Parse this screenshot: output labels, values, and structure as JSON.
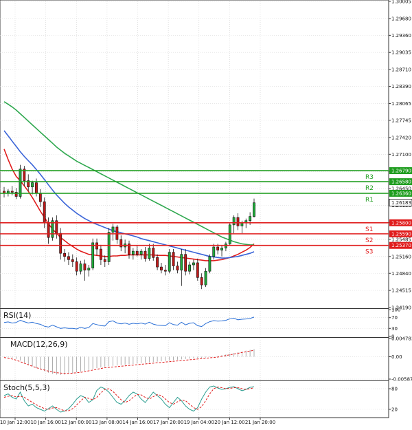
{
  "chart_data": {
    "type": "candlestick",
    "x_tick_labels": [
      "10 Jan 12:00",
      "10 Jan 16:00",
      "12 Jan 00:00",
      "13 Jan 08:00",
      "14 Jan 16:00",
      "17 Jan 20:00",
      "19 Jan 04:00",
      "20 Jan 12:00",
      "21 Jan 20:00"
    ],
    "price_axis": {
      "ticks": [
        "1.30005",
        "1.29680",
        "1.29360",
        "1.29035",
        "1.28710",
        "1.28390",
        "1.28065",
        "1.27745",
        "1.27420",
        "1.27100",
        "1.26775",
        "1.26450",
        "1.26130",
        "1.25805",
        "1.25485",
        "1.25160",
        "1.24840",
        "1.24515",
        "1.24190"
      ],
      "range": [
        1.2419,
        1.30005
      ]
    },
    "levels": [
      {
        "name": "R3",
        "value": "1.26790",
        "kind": "resistance",
        "color": "#1f9d1f"
      },
      {
        "name": "R2",
        "value": "1.26580",
        "kind": "resistance",
        "color": "#1f9d1f"
      },
      {
        "name": "R1",
        "value": "1.26360",
        "kind": "resistance",
        "color": "#1f9d1f"
      },
      {
        "name": "S1",
        "value": "1.25800",
        "kind": "support",
        "color": "#e01c1c"
      },
      {
        "name": "S2",
        "value": "1.25590",
        "kind": "support",
        "color": "#e01c1c"
      },
      {
        "name": "S3",
        "value": "1.25370",
        "kind": "support",
        "color": "#e01c1c"
      }
    ],
    "current_price": "1.26183",
    "candles": [
      [
        1.264,
        1.2648,
        1.2628,
        1.2636
      ],
      [
        1.2636,
        1.2644,
        1.263,
        1.264
      ],
      [
        1.264,
        1.265,
        1.2632,
        1.2638
      ],
      [
        1.2638,
        1.2646,
        1.2625,
        1.263
      ],
      [
        1.263,
        1.269,
        1.2626,
        1.2682
      ],
      [
        1.2682,
        1.2688,
        1.265,
        1.266
      ],
      [
        1.266,
        1.2672,
        1.264,
        1.2648
      ],
      [
        1.2648,
        1.266,
        1.2634,
        1.2656
      ],
      [
        1.2656,
        1.2664,
        1.263,
        1.2636
      ],
      [
        1.2636,
        1.2644,
        1.261,
        1.262
      ],
      [
        1.262,
        1.2628,
        1.257,
        1.258
      ],
      [
        1.258,
        1.259,
        1.254,
        1.2552
      ],
      [
        1.2552,
        1.259,
        1.2546,
        1.2584
      ],
      [
        1.2584,
        1.2594,
        1.255,
        1.256
      ],
      [
        1.256,
        1.257,
        1.251,
        1.2522
      ],
      [
        1.2522,
        1.253,
        1.2506,
        1.2516
      ],
      [
        1.2516,
        1.2524,
        1.25,
        1.251
      ],
      [
        1.251,
        1.252,
        1.2496,
        1.2506
      ],
      [
        1.2506,
        1.2514,
        1.248,
        1.2488
      ],
      [
        1.2488,
        1.2508,
        1.2482,
        1.2502
      ],
      [
        1.2502,
        1.251,
        1.247,
        1.249
      ],
      [
        1.249,
        1.25,
        1.2478,
        1.2494
      ],
      [
        1.2494,
        1.255,
        1.249,
        1.2542
      ],
      [
        1.2542,
        1.255,
        1.2518,
        1.253
      ],
      [
        1.253,
        1.2538,
        1.25,
        1.251
      ],
      [
        1.251,
        1.2518,
        1.2496,
        1.2506
      ],
      [
        1.2506,
        1.257,
        1.25,
        1.2562
      ],
      [
        1.2562,
        1.2578,
        1.2546,
        1.2572
      ],
      [
        1.2572,
        1.2576,
        1.254,
        1.2548
      ],
      [
        1.2548,
        1.2556,
        1.2526,
        1.2534
      ],
      [
        1.2534,
        1.2548,
        1.2522,
        1.254
      ],
      [
        1.254,
        1.2546,
        1.2512,
        1.252
      ],
      [
        1.252,
        1.2532,
        1.251,
        1.2526
      ],
      [
        1.2526,
        1.2536,
        1.2516,
        1.252
      ],
      [
        1.252,
        1.253,
        1.251,
        1.2526
      ],
      [
        1.2526,
        1.2534,
        1.2506,
        1.2512
      ],
      [
        1.2512,
        1.254,
        1.2508,
        1.2532
      ],
      [
        1.2532,
        1.254,
        1.2508,
        1.2514
      ],
      [
        1.2514,
        1.252,
        1.249,
        1.2496
      ],
      [
        1.2496,
        1.2504,
        1.2484,
        1.249
      ],
      [
        1.249,
        1.25,
        1.248,
        1.2488
      ],
      [
        1.2488,
        1.253,
        1.2484,
        1.2524
      ],
      [
        1.2524,
        1.253,
        1.249,
        1.2498
      ],
      [
        1.2498,
        1.2506,
        1.2484,
        1.249
      ],
      [
        1.249,
        1.253,
        1.246,
        1.252
      ],
      [
        1.252,
        1.253,
        1.248,
        1.2488
      ],
      [
        1.2488,
        1.2506,
        1.2482,
        1.25
      ],
      [
        1.25,
        1.251,
        1.249,
        1.2504
      ],
      [
        1.2504,
        1.2512,
        1.247,
        1.2476
      ],
      [
        1.2476,
        1.2484,
        1.2454,
        1.2462
      ],
      [
        1.2462,
        1.2494,
        1.2458,
        1.2488
      ],
      [
        1.2488,
        1.252,
        1.2484,
        1.2516
      ],
      [
        1.2516,
        1.254,
        1.251,
        1.2534
      ],
      [
        1.2534,
        1.254,
        1.252,
        1.2528
      ],
      [
        1.2528,
        1.2536,
        1.2516,
        1.2532
      ],
      [
        1.2532,
        1.2544,
        1.2526,
        1.254
      ],
      [
        1.254,
        1.258,
        1.2536,
        1.2576
      ],
      [
        1.2576,
        1.2594,
        1.256,
        1.259
      ],
      [
        1.259,
        1.2598,
        1.2566,
        1.2574
      ],
      [
        1.2574,
        1.2584,
        1.256,
        1.258
      ],
      [
        1.258,
        1.2588,
        1.257,
        1.2584
      ],
      [
        1.2584,
        1.26,
        1.2576,
        1.2592
      ],
      [
        1.2592,
        1.2626,
        1.259,
        1.2618
      ]
    ],
    "moving_averages": [
      {
        "color": "#e01c1c",
        "values": [
          1.272,
          1.27,
          1.2682,
          1.2668,
          1.266,
          1.265,
          1.264,
          1.2628,
          1.2615,
          1.2602,
          1.259,
          1.2578,
          1.2568,
          1.256,
          1.2552,
          1.2546,
          1.254,
          1.2535,
          1.253,
          1.2526,
          1.2523,
          1.252,
          1.2519,
          1.2518,
          1.2517,
          1.2516,
          1.2516,
          1.2517,
          1.2517,
          1.2518,
          1.2518,
          1.2519,
          1.2519,
          1.2519,
          1.2519,
          1.2519,
          1.2519,
          1.2519,
          1.2518,
          1.2518,
          1.2518,
          1.2517,
          1.2516,
          1.2515,
          1.2514,
          1.2513,
          1.2512,
          1.2511,
          1.251,
          1.2509,
          1.2508,
          1.2508,
          1.2508,
          1.2509,
          1.251,
          1.2512,
          1.2514,
          1.2517,
          1.252,
          1.2524,
          1.2528,
          1.2533,
          1.254
        ]
      },
      {
        "color": "#3a64d8",
        "values": [
          1.2755,
          1.2745,
          1.2735,
          1.2725,
          1.2715,
          1.2706,
          1.2698,
          1.269,
          1.2681,
          1.2672,
          1.2662,
          1.2652,
          1.2642,
          1.2633,
          1.2625,
          1.2617,
          1.261,
          1.2604,
          1.2598,
          1.2593,
          1.2588,
          1.2584,
          1.258,
          1.2577,
          1.2574,
          1.2571,
          1.2568,
          1.2565,
          1.2563,
          1.2561,
          1.2559,
          1.2557,
          1.2555,
          1.2553,
          1.255,
          1.2548,
          1.2546,
          1.2544,
          1.2542,
          1.254,
          1.2538,
          1.2536,
          1.2534,
          1.2532,
          1.253,
          1.2528,
          1.2526,
          1.2524,
          1.2522,
          1.252,
          1.2518,
          1.2516,
          1.2515,
          1.2514,
          1.2513,
          1.2513,
          1.2514,
          1.2515,
          1.2516,
          1.2518,
          1.252,
          1.2522,
          1.2525
        ]
      },
      {
        "color": "#2fa84f",
        "values": [
          1.281,
          1.2805,
          1.28,
          1.2794,
          1.2787,
          1.278,
          1.2773,
          1.2766,
          1.2759,
          1.2752,
          1.2745,
          1.2738,
          1.2731,
          1.2724,
          1.2718,
          1.2712,
          1.2707,
          1.2702,
          1.2697,
          1.2693,
          1.2689,
          1.2685,
          1.2681,
          1.2677,
          1.2673,
          1.2669,
          1.2665,
          1.2661,
          1.2657,
          1.2653,
          1.2649,
          1.2645,
          1.2641,
          1.2637,
          1.2633,
          1.2629,
          1.2625,
          1.2621,
          1.2617,
          1.2613,
          1.2609,
          1.2605,
          1.2601,
          1.2597,
          1.2593,
          1.2589,
          1.2585,
          1.2581,
          1.2577,
          1.2573,
          1.2569,
          1.2565,
          1.2561,
          1.2557,
          1.2553,
          1.255,
          1.2547,
          1.2544,
          1.2542,
          1.254,
          1.2539,
          1.2538,
          1.2538
        ]
      }
    ],
    "panels": [
      {
        "label": "RSI(14)",
        "axis_labels": [
          "100",
          "70",
          "30",
          "0"
        ],
        "axis_values": [
          100,
          70,
          30,
          0
        ],
        "range": [
          0,
          100
        ],
        "series": [
          {
            "color": "#2a6fd6",
            "values": [
              52,
              54,
              50,
              52,
              60,
              55,
              50,
              53,
              48,
              45,
              38,
              35,
              42,
              36,
              30,
              32,
              30,
              30,
              28,
              34,
              30,
              33,
              48,
              44,
              40,
              39,
              55,
              58,
              50,
              47,
              50,
              45,
              49,
              47,
              50,
              46,
              53,
              46,
              42,
              41,
              40,
              51,
              44,
              42,
              53,
              43,
              49,
              51,
              40,
              37,
              48,
              55,
              59,
              57,
              58,
              60,
              66,
              68,
              62,
              64,
              65,
              67,
              72
            ]
          }
        ]
      },
      {
        "label": "MACD(12,26,9)",
        "axis_labels": [
          "0.004783",
          "0.00",
          "-0.005875"
        ],
        "axis_values": [
          0.004783,
          0.0,
          -0.005875
        ],
        "range": [
          -0.005875,
          0.004783
        ],
        "histogram": [
          -0.0001,
          -0.0002,
          -0.0003,
          -0.0006,
          -0.001,
          -0.0015,
          -0.002,
          -0.0025,
          -0.003,
          -0.0034,
          -0.0038,
          -0.0042,
          -0.0045,
          -0.0047,
          -0.0048,
          -0.0047,
          -0.0045,
          -0.0043,
          -0.0041,
          -0.0039,
          -0.0037,
          -0.0035,
          -0.0032,
          -0.003,
          -0.0028,
          -0.0026,
          -0.0025,
          -0.0024,
          -0.0023,
          -0.0022,
          -0.0021,
          -0.002,
          -0.0019,
          -0.0018,
          -0.0017,
          -0.0016,
          -0.0015,
          -0.0014,
          -0.0013,
          -0.0012,
          -0.0011,
          -0.001,
          -0.0009,
          -0.0008,
          -0.0007,
          -0.0006,
          -0.0005,
          -0.0004,
          -0.0003,
          -0.0003,
          -0.0002,
          -0.0001,
          0.0,
          0.0002,
          0.0004,
          0.0006,
          0.0008,
          0.001,
          0.0012,
          0.0014,
          0.0016,
          0.0018,
          0.002
        ],
        "series": [
          {
            "color": "#e01c1c",
            "dashed": true,
            "values": [
              -0.0002,
              -0.0004,
              -0.0006,
              -0.0009,
              -0.0013,
              -0.0017,
              -0.0021,
              -0.0025,
              -0.0029,
              -0.0032,
              -0.0035,
              -0.0038,
              -0.004,
              -0.0042,
              -0.0043,
              -0.0044,
              -0.0044,
              -0.0043,
              -0.0042,
              -0.0041,
              -0.0039,
              -0.0037,
              -0.0035,
              -0.0033,
              -0.0031,
              -0.0029,
              -0.0028,
              -0.0027,
              -0.0026,
              -0.0025,
              -0.0024,
              -0.0023,
              -0.0022,
              -0.0021,
              -0.002,
              -0.0019,
              -0.0018,
              -0.0017,
              -0.0016,
              -0.0015,
              -0.0014,
              -0.0013,
              -0.0012,
              -0.0011,
              -0.001,
              -0.0009,
              -0.0008,
              -0.0007,
              -0.0006,
              -0.0005,
              -0.0004,
              -0.0003,
              -0.0002,
              -0.0001,
              0.0001,
              0.0003,
              0.0005,
              0.0007,
              0.0009,
              0.0011,
              0.0013,
              0.0015,
              0.0017
            ]
          }
        ]
      },
      {
        "label": "Stoch(5,5,3)",
        "axis_labels": [
          "80",
          "20"
        ],
        "axis_values": [
          80,
          20
        ],
        "range": [
          0,
          100
        ],
        "series": [
          {
            "color": "#2a9d8f",
            "values": [
              60,
              65,
              55,
              50,
              70,
              45,
              30,
              35,
              25,
              20,
              15,
              22,
              30,
              20,
              12,
              15,
              22,
              35,
              50,
              60,
              55,
              40,
              48,
              75,
              85,
              80,
              70,
              55,
              40,
              35,
              45,
              60,
              70,
              65,
              50,
              40,
              55,
              70,
              60,
              50,
              35,
              25,
              40,
              55,
              45,
              30,
              20,
              15,
              25,
              50,
              70,
              85,
              88,
              82,
              78,
              80,
              84,
              86,
              80,
              74,
              78,
              84,
              86
            ]
          },
          {
            "color": "#e01c1c",
            "dashed": true,
            "values": [
              55,
              58,
              60,
              56,
              58,
              55,
              48,
              40,
              33,
              28,
              22,
              20,
              24,
              25,
              20,
              16,
              16,
              22,
              33,
              45,
              55,
              52,
              48,
              55,
              68,
              78,
              80,
              72,
              60,
              48,
              40,
              45,
              55,
              63,
              62,
              55,
              50,
              57,
              63,
              60,
              50,
              40,
              35,
              42,
              47,
              45,
              35,
              25,
              20,
              28,
              45,
              65,
              80,
              85,
              83,
              80,
              81,
              83,
              83,
              80,
              78,
              80,
              83
            ]
          }
        ]
      }
    ]
  }
}
